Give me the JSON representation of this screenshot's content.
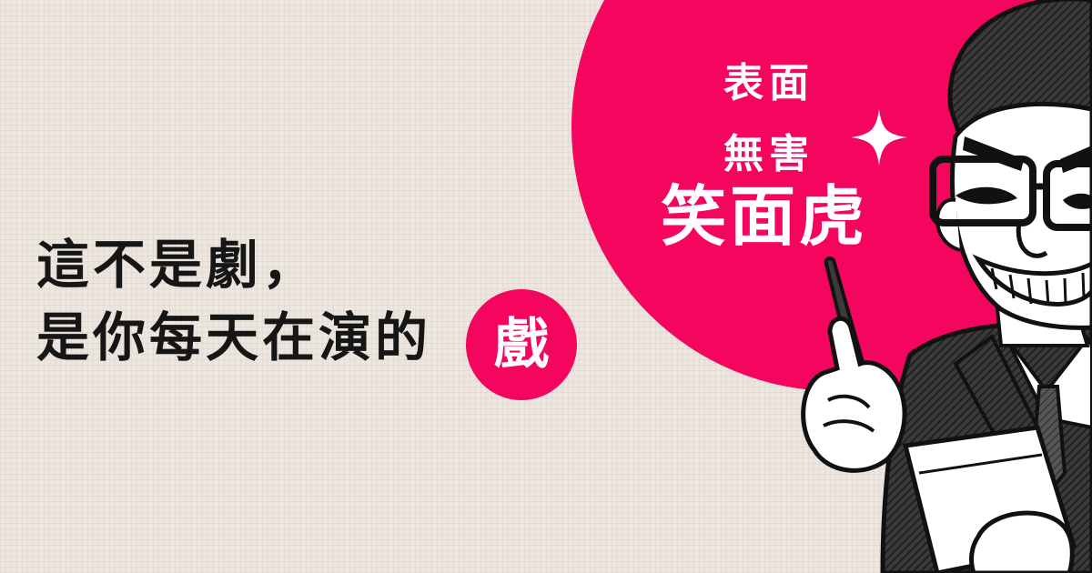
{
  "slogan": {
    "line1": "表面",
    "line2": "無害",
    "line3": "笑面虎"
  },
  "headline": {
    "line1": "這不是劇，",
    "line2": "是你每天在演的",
    "accent": "戲"
  },
  "colors": {
    "accent": "#f4065f",
    "background": "#ece6df",
    "text": "#161616"
  },
  "icons": {
    "sparkle": "sparkle-icon"
  }
}
